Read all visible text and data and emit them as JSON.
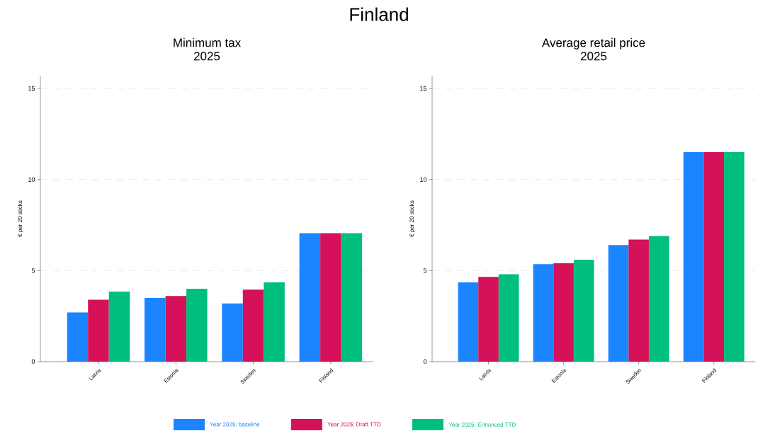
{
  "chart_data": [
    {
      "type": "bar",
      "title": "Minimum tax",
      "subtitle": "2025",
      "ylabel": "€ per 20 sticks",
      "annotations": [
        "Finland"
      ],
      "categories": [
        "Latvia",
        "Estonia",
        "Sweden",
        "Finland"
      ],
      "series": [
        {
          "name": "Year 2025; baseline",
          "color": "#1a85ff",
          "values": [
            2.7,
            3.5,
            3.2,
            7.05
          ]
        },
        {
          "name": "Year 2025; Draft TTD",
          "color": "#d41159",
          "values": [
            3.4,
            3.6,
            3.95,
            7.05
          ]
        },
        {
          "name": "Year 2025: Enhanced TTD",
          "color": "#00bf7d",
          "values": [
            3.85,
            4.0,
            4.35,
            7.05
          ]
        }
      ],
      "ylim": [
        0,
        15.7
      ],
      "yticks": [
        0,
        5,
        10,
        15
      ],
      "grid": "y",
      "legend": "bottom"
    },
    {
      "type": "bar",
      "title": "Average retail price",
      "subtitle": "2025",
      "ylabel": "€ per 20 sticks",
      "categories": [
        "Latvia",
        "Estonia",
        "Sweden",
        "Finland"
      ],
      "series": [
        {
          "color": "#1a85ff",
          "values": [
            4.35,
            5.35,
            6.4,
            11.5
          ]
        },
        {
          "color": "#d41159",
          "values": [
            4.65,
            5.4,
            6.7,
            11.5
          ]
        },
        {
          "color": "#00bf7d",
          "values": [
            4.8,
            5.6,
            6.9,
            11.5
          ]
        }
      ],
      "ylim": [
        0,
        15.7
      ],
      "yticks": [
        0,
        5,
        10,
        15
      ],
      "grid": "y"
    }
  ]
}
